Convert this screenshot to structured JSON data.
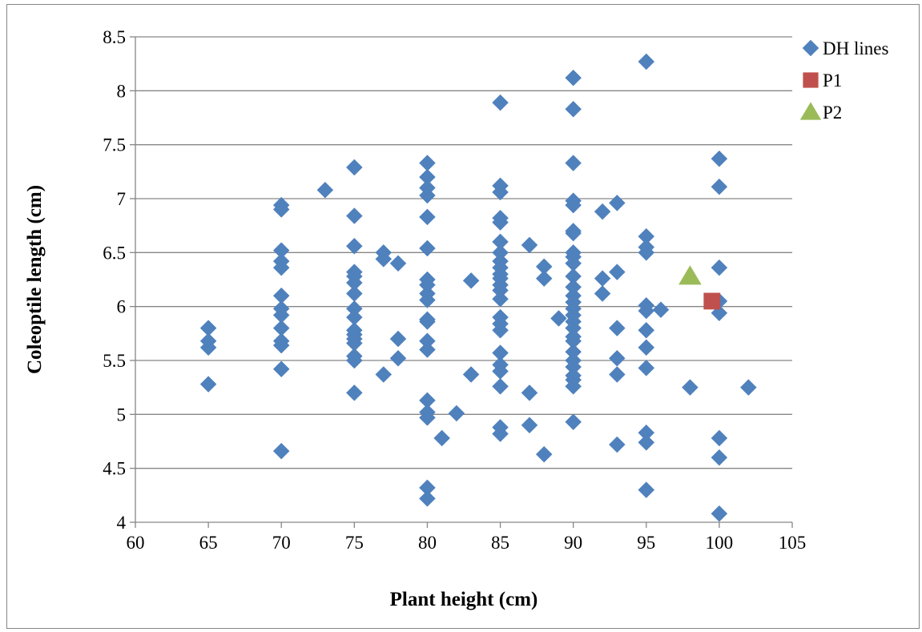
{
  "chart_data": {
    "type": "scatter",
    "title": "",
    "xlabel": "Plant height (cm)",
    "ylabel": "Coleoptile length (cm)",
    "xlim": [
      60,
      105
    ],
    "ylim": [
      4,
      8.5
    ],
    "xticks": [
      "60",
      "65",
      "70",
      "75",
      "80",
      "85",
      "90",
      "95",
      "100",
      "105"
    ],
    "yticks": [
      "4",
      "4.5",
      "5",
      "5.5",
      "6",
      "6.5",
      "7",
      "7.5",
      "8",
      "8.5"
    ],
    "grid": "horizontal",
    "legend_position": "top-right",
    "series": [
      {
        "name": "DH lines",
        "marker": "diamond",
        "color": "#4F81BD",
        "points": [
          [
            65,
            5.8
          ],
          [
            65,
            5.68
          ],
          [
            65,
            5.62
          ],
          [
            65,
            5.28
          ],
          [
            70,
            6.94
          ],
          [
            70,
            6.9
          ],
          [
            70,
            6.52
          ],
          [
            70,
            6.42
          ],
          [
            70,
            6.36
          ],
          [
            70,
            6.1
          ],
          [
            70,
            5.98
          ],
          [
            70,
            5.92
          ],
          [
            70,
            5.8
          ],
          [
            70,
            5.68
          ],
          [
            70,
            5.64
          ],
          [
            70,
            5.42
          ],
          [
            70,
            4.66
          ],
          [
            73,
            7.08
          ],
          [
            75,
            7.29
          ],
          [
            75,
            6.84
          ],
          [
            75,
            6.56
          ],
          [
            75,
            6.32
          ],
          [
            75,
            6.28
          ],
          [
            75,
            6.22
          ],
          [
            75,
            6.12
          ],
          [
            75,
            5.98
          ],
          [
            75,
            5.9
          ],
          [
            75,
            5.78
          ],
          [
            75,
            5.74
          ],
          [
            75,
            5.7
          ],
          [
            75,
            5.66
          ],
          [
            75,
            5.54
          ],
          [
            75,
            5.5
          ],
          [
            75,
            5.2
          ],
          [
            77,
            6.5
          ],
          [
            77,
            6.44
          ],
          [
            77,
            5.37
          ],
          [
            78,
            6.4
          ],
          [
            78,
            5.7
          ],
          [
            78,
            5.52
          ],
          [
            80,
            7.33
          ],
          [
            80,
            7.2
          ],
          [
            80,
            7.1
          ],
          [
            80,
            7.03
          ],
          [
            80,
            6.83
          ],
          [
            80,
            6.54
          ],
          [
            80,
            6.25
          ],
          [
            80,
            6.2
          ],
          [
            80,
            6.12
          ],
          [
            80,
            6.06
          ],
          [
            80,
            5.88
          ],
          [
            80,
            5.86
          ],
          [
            80,
            5.68
          ],
          [
            80,
            5.6
          ],
          [
            80,
            5.13
          ],
          [
            80,
            5.02
          ],
          [
            80,
            4.97
          ],
          [
            80,
            4.32
          ],
          [
            80,
            4.22
          ],
          [
            81,
            4.78
          ],
          [
            82,
            5.01
          ],
          [
            83,
            6.24
          ],
          [
            83,
            5.37
          ],
          [
            85,
            7.89
          ],
          [
            85,
            7.12
          ],
          [
            85,
            7.06
          ],
          [
            85,
            6.82
          ],
          [
            85,
            6.78
          ],
          [
            85,
            6.6
          ],
          [
            85,
            6.5
          ],
          [
            85,
            6.42
          ],
          [
            85,
            6.36
          ],
          [
            85,
            6.3
          ],
          [
            85,
            6.26
          ],
          [
            85,
            6.2
          ],
          [
            85,
            6.15
          ],
          [
            85,
            6.07
          ],
          [
            85,
            5.9
          ],
          [
            85,
            5.84
          ],
          [
            85,
            5.78
          ],
          [
            85,
            5.57
          ],
          [
            85,
            5.46
          ],
          [
            85,
            5.4
          ],
          [
            85,
            5.26
          ],
          [
            85,
            4.88
          ],
          [
            85,
            4.82
          ],
          [
            87,
            6.57
          ],
          [
            87,
            5.2
          ],
          [
            87,
            4.9
          ],
          [
            88,
            6.37
          ],
          [
            88,
            6.26
          ],
          [
            88,
            4.63
          ],
          [
            89,
            5.89
          ],
          [
            90,
            8.12
          ],
          [
            90,
            7.83
          ],
          [
            90,
            7.33
          ],
          [
            90,
            6.98
          ],
          [
            90,
            6.94
          ],
          [
            90,
            6.7
          ],
          [
            90,
            6.68
          ],
          [
            90,
            6.5
          ],
          [
            90,
            6.46
          ],
          [
            90,
            6.4
          ],
          [
            90,
            6.28
          ],
          [
            90,
            6.18
          ],
          [
            90,
            6.1
          ],
          [
            90,
            6.04
          ],
          [
            90,
            5.98
          ],
          [
            90,
            5.92
          ],
          [
            90,
            5.86
          ],
          [
            90,
            5.8
          ],
          [
            90,
            5.72
          ],
          [
            90,
            5.68
          ],
          [
            90,
            5.58
          ],
          [
            90,
            5.5
          ],
          [
            90,
            5.44
          ],
          [
            90,
            5.36
          ],
          [
            90,
            5.32
          ],
          [
            90,
            5.26
          ],
          [
            90,
            4.93
          ],
          [
            92,
            6.88
          ],
          [
            92,
            6.26
          ],
          [
            92,
            6.12
          ],
          [
            93,
            6.96
          ],
          [
            93,
            6.32
          ],
          [
            93,
            5.8
          ],
          [
            93,
            5.52
          ],
          [
            93,
            5.37
          ],
          [
            93,
            4.72
          ],
          [
            95,
            8.27
          ],
          [
            95,
            6.65
          ],
          [
            95,
            6.55
          ],
          [
            95,
            6.5
          ],
          [
            95,
            6.01
          ],
          [
            95,
            5.96
          ],
          [
            95,
            5.78
          ],
          [
            95,
            5.62
          ],
          [
            95,
            5.43
          ],
          [
            95,
            4.83
          ],
          [
            95,
            4.74
          ],
          [
            95,
            4.3
          ],
          [
            96,
            5.97
          ],
          [
            98,
            5.25
          ],
          [
            100,
            7.37
          ],
          [
            100,
            7.11
          ],
          [
            100,
            6.36
          ],
          [
            100,
            6.05
          ],
          [
            100,
            5.94
          ],
          [
            100,
            4.78
          ],
          [
            100,
            4.6
          ],
          [
            100,
            4.08
          ],
          [
            102,
            5.25
          ]
        ]
      },
      {
        "name": "P1",
        "marker": "square",
        "color": "#C0504D",
        "points": [
          [
            99.5,
            6.05
          ]
        ]
      },
      {
        "name": "P2",
        "marker": "triangle",
        "color": "#9BBB59",
        "points": [
          [
            98,
            6.28
          ]
        ]
      }
    ]
  }
}
